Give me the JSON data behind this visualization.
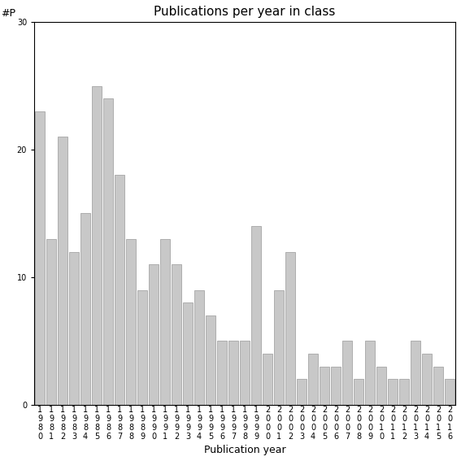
{
  "title": "Publications per year in class",
  "xlabel": "Publication year",
  "ylabel": "#P",
  "bar_color": "#c8c8c8",
  "bar_edge_color": "#999999",
  "ylim": [
    0,
    30
  ],
  "yticks": [
    0,
    10,
    20,
    30
  ],
  "categories": [
    "1980",
    "1981",
    "1982",
    "1983",
    "1984",
    "1985",
    "1986",
    "1987",
    "1988",
    "1989",
    "1990",
    "1991",
    "1992",
    "1993",
    "1994",
    "1995",
    "1996",
    "1997",
    "1998",
    "1999",
    "2000",
    "2001",
    "2002",
    "2003",
    "2004",
    "2005",
    "2006",
    "2007",
    "2008",
    "2009",
    "2010",
    "2011",
    "2012",
    "2013",
    "2014",
    "2015",
    "2016"
  ],
  "values": [
    23,
    13,
    21,
    12,
    15,
    25,
    24,
    18,
    13,
    9,
    11,
    13,
    11,
    8,
    9,
    7,
    5,
    5,
    5,
    14,
    4,
    9,
    12,
    2,
    4,
    3,
    3,
    5,
    2,
    5,
    3,
    2,
    2,
    5,
    4,
    3,
    2
  ],
  "title_fontsize": 11,
  "label_fontsize": 9,
  "tick_fontsize": 7
}
